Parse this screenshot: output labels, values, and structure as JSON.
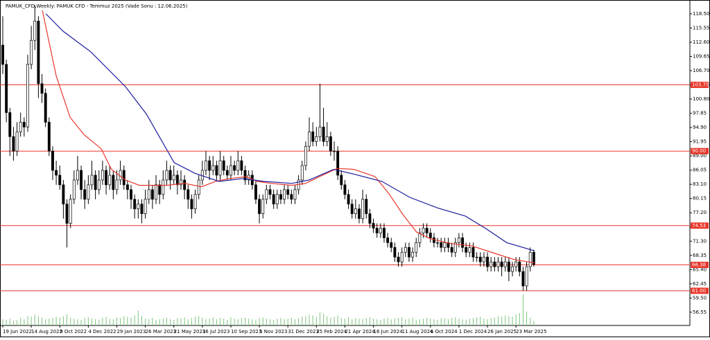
{
  "chart_data": {
    "type": "candlestick",
    "title": "PAMUK_CFD,Weekly: PAMUK CFD - Temmuz 2025 (Vade Sonu : 12.06.2025)",
    "categories": [
      "19 Jun 2022",
      null,
      null,
      null,
      null,
      null,
      null,
      null,
      "14 Aug 2022",
      null,
      null,
      null,
      null,
      null,
      null,
      null,
      "9 Oct 2022",
      null,
      null,
      null,
      null,
      null,
      null,
      null,
      "4 Dec 2022",
      null,
      null,
      null,
      null,
      null,
      null,
      null,
      "29 Jan 2023",
      null,
      null,
      null,
      null,
      null,
      null,
      null,
      "26 Mar 2023",
      null,
      null,
      null,
      null,
      null,
      null,
      null,
      "21 May 2023",
      null,
      null,
      null,
      null,
      null,
      null,
      null,
      "16 Jul 2023",
      null,
      null,
      null,
      null,
      null,
      null,
      null,
      "10 Sep 2023",
      null,
      null,
      null,
      null,
      null,
      null,
      null,
      "5 Nov 2023",
      null,
      null,
      null,
      null,
      null,
      null,
      null,
      "31 Dec 2023",
      null,
      null,
      null,
      null,
      null,
      null,
      null,
      "25 Feb 2024",
      null,
      null,
      null,
      null,
      null,
      null,
      null,
      "21 Apr 2024",
      null,
      null,
      null,
      null,
      null,
      null,
      null,
      "16 Jun 2024",
      null,
      null,
      null,
      null,
      null,
      null,
      null,
      "11 Aug 2024",
      null,
      null,
      null,
      null,
      null,
      null,
      null,
      "6 Oct 2024",
      null,
      null,
      null,
      null,
      null,
      null,
      null,
      "1 Dec 2024",
      null,
      null,
      null,
      null,
      null,
      null,
      null,
      "26 Jan 2025",
      null,
      null,
      null,
      null,
      null,
      null,
      null,
      "23 Mar 2025",
      null,
      null,
      null,
      null,
      null
    ],
    "ohlc": [
      [
        112,
        118,
        106,
        108
      ],
      [
        108,
        109,
        96,
        98
      ],
      [
        98,
        99,
        89,
        93
      ],
      [
        93,
        95,
        88,
        90
      ],
      [
        90,
        96,
        89,
        94
      ],
      [
        94,
        98,
        93,
        96
      ],
      [
        96,
        97,
        93,
        95
      ],
      [
        95,
        110,
        94,
        108
      ],
      [
        108,
        116,
        107,
        113
      ],
      [
        113,
        120.3,
        111,
        117
      ],
      [
        117,
        118,
        101,
        104
      ],
      [
        104,
        106,
        100,
        102
      ],
      [
        102,
        103,
        95,
        96
      ],
      [
        96,
        97,
        89,
        90
      ],
      [
        90,
        91,
        84,
        86
      ],
      [
        86,
        88,
        83,
        85
      ],
      [
        85,
        87,
        82,
        83
      ],
      [
        83,
        84,
        76,
        79
      ],
      [
        79,
        80,
        70,
        75
      ],
      [
        75,
        81,
        74,
        80
      ],
      [
        80,
        86,
        79,
        84
      ],
      [
        84,
        89,
        83,
        86
      ],
      [
        86,
        87,
        80,
        82
      ],
      [
        82,
        84,
        78,
        80
      ],
      [
        80,
        85,
        79,
        83
      ],
      [
        83,
        88,
        82,
        85
      ],
      [
        85,
        86,
        80,
        82
      ],
      [
        82,
        86,
        81,
        84
      ],
      [
        84,
        88,
        83,
        86
      ],
      [
        86,
        87,
        81,
        83
      ],
      [
        83,
        87,
        82,
        85
      ],
      [
        85,
        86,
        80,
        82
      ],
      [
        82,
        86,
        81,
        84
      ],
      [
        84,
        88,
        83,
        86
      ],
      [
        86,
        87,
        82,
        83
      ],
      [
        83,
        84,
        80,
        82
      ],
      [
        82,
        83,
        78,
        80
      ],
      [
        80,
        81,
        76,
        78
      ],
      [
        78,
        80,
        76,
        79
      ],
      [
        79,
        80,
        75,
        77
      ],
      [
        77,
        82,
        76,
        80
      ],
      [
        80,
        84,
        79,
        82
      ],
      [
        82,
        83,
        78,
        80
      ],
      [
        80,
        85,
        79,
        83
      ],
      [
        83,
        84,
        79,
        81
      ],
      [
        81,
        86,
        80,
        84
      ],
      [
        84,
        88,
        83,
        86
      ],
      [
        86,
        87,
        82,
        84
      ],
      [
        84,
        87,
        83,
        85
      ],
      [
        85,
        86,
        81,
        83
      ],
      [
        83,
        86,
        82,
        84
      ],
      [
        84,
        85,
        80,
        82
      ],
      [
        82,
        83,
        78,
        80
      ],
      [
        80,
        81,
        76,
        78
      ],
      [
        78,
        82,
        77,
        81
      ],
      [
        81,
        85,
        80,
        84
      ],
      [
        84,
        88,
        83,
        86
      ],
      [
        86,
        90,
        85,
        88
      ],
      [
        88,
        89,
        84,
        86
      ],
      [
        86,
        89,
        85,
        87
      ],
      [
        87,
        88,
        84,
        85
      ],
      [
        85,
        90,
        84,
        88
      ],
      [
        88,
        89,
        85,
        86
      ],
      [
        86,
        87,
        84,
        85
      ],
      [
        85,
        89,
        84,
        87
      ],
      [
        87,
        88,
        85,
        86
      ],
      [
        86,
        90,
        85,
        88
      ],
      [
        88,
        89,
        85,
        86
      ],
      [
        86,
        87,
        83,
        84
      ],
      [
        84,
        86,
        83,
        85
      ],
      [
        85,
        86,
        82,
        83
      ],
      [
        83,
        84,
        79,
        80
      ],
      [
        80,
        81,
        75,
        77
      ],
      [
        77,
        81,
        76,
        80
      ],
      [
        80,
        83,
        79,
        82
      ],
      [
        82,
        83,
        80,
        81
      ],
      [
        81,
        82,
        78,
        79
      ],
      [
        79,
        82,
        78,
        81
      ],
      [
        81,
        82,
        79,
        80
      ],
      [
        80,
        83,
        79,
        82
      ],
      [
        82,
        83,
        80,
        81
      ],
      [
        81,
        82,
        79,
        80
      ],
      [
        80,
        83,
        79,
        82
      ],
      [
        82,
        85,
        81,
        84
      ],
      [
        84,
        88,
        83,
        87
      ],
      [
        87,
        92,
        86,
        91
      ],
      [
        91,
        97,
        90,
        94
      ],
      [
        94,
        96,
        91,
        92
      ],
      [
        92,
        95,
        91,
        93
      ],
      [
        93,
        104,
        92,
        95
      ],
      [
        95,
        99,
        91,
        92
      ],
      [
        92,
        96,
        91,
        93
      ],
      [
        93,
        94,
        89,
        90
      ],
      [
        90,
        92,
        88,
        90
      ],
      [
        90,
        91,
        84,
        85
      ],
      [
        85,
        86,
        82,
        83
      ],
      [
        83,
        84,
        80,
        81
      ],
      [
        81,
        82,
        78,
        79
      ],
      [
        79,
        80,
        76,
        77
      ],
      [
        77,
        80,
        76,
        78
      ],
      [
        78,
        79,
        75,
        76
      ],
      [
        76,
        82,
        75,
        80
      ],
      [
        80,
        81,
        76,
        77
      ],
      [
        77,
        78,
        74,
        75
      ],
      [
        75,
        76,
        73,
        74
      ],
      [
        74,
        75,
        72,
        73
      ],
      [
        73,
        75,
        72,
        74
      ],
      [
        74,
        75,
        71,
        72
      ],
      [
        72,
        73,
        70,
        71
      ],
      [
        71,
        72,
        69,
        70
      ],
      [
        70,
        71,
        67,
        68
      ],
      [
        68,
        69,
        66,
        67
      ],
      [
        67,
        70,
        66,
        69
      ],
      [
        69,
        71,
        68,
        70
      ],
      [
        70,
        71,
        67,
        68
      ],
      [
        68,
        70,
        67,
        69
      ],
      [
        69,
        72,
        68,
        71
      ],
      [
        71,
        74,
        70,
        73
      ],
      [
        73,
        75,
        72,
        74
      ],
      [
        74,
        75,
        72,
        73
      ],
      [
        73,
        74,
        71,
        72
      ],
      [
        72,
        73,
        70,
        71
      ],
      [
        71,
        72,
        70,
        71
      ],
      [
        71,
        72,
        69,
        70
      ],
      [
        70,
        72,
        69,
        71
      ],
      [
        71,
        72,
        69,
        70
      ],
      [
        70,
        71,
        68,
        69
      ],
      [
        69,
        72,
        68,
        71
      ],
      [
        71,
        73,
        70,
        72
      ],
      [
        72,
        73,
        69,
        70
      ],
      [
        70,
        71,
        68,
        69
      ],
      [
        69,
        71,
        68,
        70
      ],
      [
        70,
        71,
        67,
        68
      ],
      [
        68,
        69,
        67,
        68
      ],
      [
        68,
        69,
        66,
        67
      ],
      [
        67,
        69,
        66,
        68
      ],
      [
        68,
        69,
        65,
        66
      ],
      [
        66,
        68,
        65,
        67
      ],
      [
        67,
        68,
        65,
        66
      ],
      [
        66,
        68,
        65,
        67
      ],
      [
        67,
        68,
        64,
        66
      ],
      [
        66,
        68,
        65,
        67
      ],
      [
        67,
        68,
        63,
        65
      ],
      [
        65,
        67,
        64,
        66
      ],
      [
        66,
        68,
        65,
        67
      ],
      [
        67,
        68,
        64,
        65
      ],
      [
        65,
        66,
        61,
        62
      ],
      [
        62,
        67,
        61,
        66
      ],
      [
        66,
        70,
        65,
        69
      ],
      [
        69,
        69.5,
        66,
        66.5
      ]
    ],
    "up_color": "#ffffff",
    "down_color": "#000000",
    "volume": [
      20,
      18,
      22,
      15,
      17,
      25,
      20,
      30,
      28,
      35,
      30,
      25,
      20,
      22,
      24,
      28,
      26,
      30,
      35,
      25,
      22,
      20,
      18,
      24,
      26,
      22,
      20,
      18,
      25,
      28,
      22,
      20,
      26,
      24,
      30,
      28,
      25,
      32,
      48,
      30,
      22,
      20,
      24,
      18,
      20,
      22,
      25,
      20,
      18,
      24,
      22,
      26,
      20,
      24,
      28,
      30,
      25,
      20,
      22,
      26,
      20,
      24,
      22,
      18,
      26,
      22,
      20,
      24,
      25,
      22,
      20,
      18,
      24,
      26,
      22,
      20,
      18,
      22,
      24,
      20,
      22,
      25,
      20,
      24,
      28,
      30,
      35,
      32,
      28,
      42,
      38,
      30,
      25,
      28,
      32,
      24,
      22,
      26,
      20,
      24,
      22,
      20,
      24,
      26,
      22,
      20,
      18,
      22,
      24,
      20,
      22,
      24,
      26,
      20,
      22,
      25,
      18,
      20,
      22,
      24,
      22,
      20,
      18,
      24,
      22,
      20,
      24,
      26,
      22,
      20,
      18,
      22,
      24,
      26,
      28,
      22,
      20,
      24,
      26,
      30,
      28,
      32,
      30,
      28,
      35,
      40,
      100,
      45,
      25,
      15
    ],
    "volume_color": "#7cc47c",
    "volume_ylim": [
      0,
      100
    ],
    "lines": [
      {
        "color": "#e8362a",
        "x": [
          11.1,
          15,
          18.9,
          22.8,
          27.6,
          30.5,
          34.4,
          38.3,
          46.1,
          51,
          55.8,
          59.7,
          63.6,
          68.5,
          71.4,
          75.3,
          81.1,
          85,
          88.9,
          93.8,
          98.6,
          104.5,
          108.4,
          112.3,
          116.1,
          120,
          125.9,
          131.7,
          137.5,
          143.4,
          149.2
        ],
        "values": [
          119.2,
          105.6,
          97.0,
          93.4,
          90.5,
          86.2,
          84.0,
          82.9,
          82.9,
          83.3,
          82.6,
          83.7,
          84.3,
          84.7,
          83.7,
          83.3,
          82.9,
          83.3,
          84.7,
          86.4,
          86.2,
          84.7,
          81.1,
          76.8,
          73.2,
          71.8,
          70.8,
          70.3,
          68.9,
          67.5,
          66.8
        ]
      },
      {
        "color": "#1a1a9c",
        "x": [
          12.1,
          16.9,
          24.7,
          34.4,
          40.3,
          48.1,
          53.9,
          60.7,
          67.5,
          73.3,
          81.1,
          86,
          92.8,
          98.6,
          106.4,
          114.2,
          122,
          129.8,
          135.6,
          141.4,
          149.2
        ],
        "values": [
          118.5,
          114.9,
          110.6,
          103.4,
          97.7,
          87.6,
          85.4,
          83.7,
          84.3,
          83.7,
          83.3,
          84.0,
          86.2,
          85.2,
          83.7,
          80.4,
          78.2,
          76.5,
          73.9,
          71.0,
          69.3
        ]
      }
    ],
    "levels": [
      103.75,
      {
        "value": 90,
        "label": "90.00"
      },
      74.53,
      66.38,
      {
        "value": 61,
        "label": "61.00"
      }
    ],
    "level_color": "#e8362a",
    "ylim": [
      53.8,
      120.65
    ],
    "yticks": [
      {
        "value": 118.5,
        "label": "118.50"
      },
      115.55,
      {
        "value": 112.6,
        "label": "112.60"
      },
      109.65,
      {
        "value": 106.7,
        "label": "106.70"
      },
      103.75,
      {
        "value": 100.8,
        "label": "100.80"
      },
      97.85,
      {
        "value": 94.9,
        "label": "94.90"
      },
      91.95,
      {
        "value": 89,
        "label": "89.00"
      },
      86.05,
      {
        "value": 83.1,
        "label": "83.10"
      },
      80.15,
      {
        "value": 77.2,
        "label": "77.20"
      },
      74.25,
      {
        "value": 71.3,
        "label": "71.30"
      },
      68.35,
      {
        "value": 65.4,
        "label": "65.40"
      },
      62.45,
      {
        "value": 59.5,
        "label": "59.50"
      },
      56.55
    ],
    "grid": false
  }
}
